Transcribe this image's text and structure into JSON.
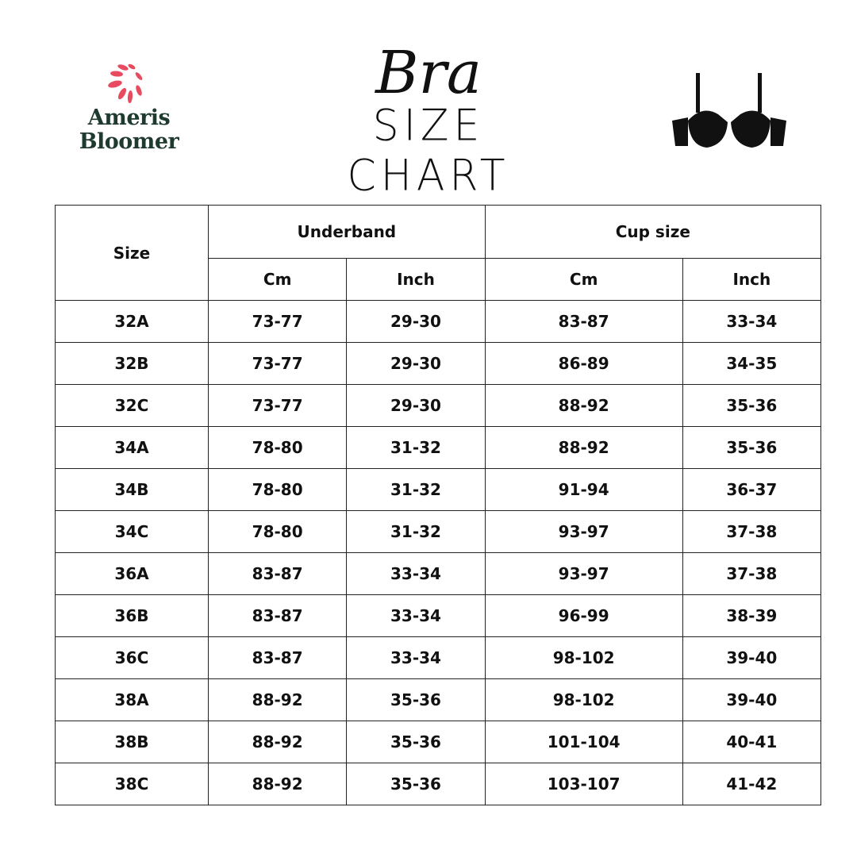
{
  "brand": {
    "name_line1": "Ameris",
    "name_line2": "Bloomer",
    "accent": "#e84a5f",
    "text_color": "#1f3a2e"
  },
  "title": {
    "script": "Bra",
    "main": "SIZE CHART"
  },
  "icon": "bra-icon",
  "table": {
    "size_header": "Size",
    "groups": [
      "Underband",
      "Cup size"
    ],
    "subheaders": [
      "Cm",
      "Inch",
      "Cm",
      "Inch"
    ],
    "rows": [
      [
        "32A",
        "73-77",
        "29-30",
        "83-87",
        "33-34"
      ],
      [
        "32B",
        "73-77",
        "29-30",
        "86-89",
        "34-35"
      ],
      [
        "32C",
        "73-77",
        "29-30",
        "88-92",
        "35-36"
      ],
      [
        "34A",
        "78-80",
        "31-32",
        "88-92",
        "35-36"
      ],
      [
        "34B",
        "78-80",
        "31-32",
        "91-94",
        "36-37"
      ],
      [
        "34C",
        "78-80",
        "31-32",
        "93-97",
        "37-38"
      ],
      [
        "36A",
        "83-87",
        "33-34",
        "93-97",
        "37-38"
      ],
      [
        "36B",
        "83-87",
        "33-34",
        "96-99",
        "38-39"
      ],
      [
        "36C",
        "83-87",
        "33-34",
        "98-102",
        "39-40"
      ],
      [
        "38A",
        "88-92",
        "35-36",
        "98-102",
        "39-40"
      ],
      [
        "38B",
        "88-92",
        "35-36",
        "101-104",
        "40-41"
      ],
      [
        "38C",
        "88-92",
        "35-36",
        "103-107",
        "41-42"
      ]
    ]
  }
}
